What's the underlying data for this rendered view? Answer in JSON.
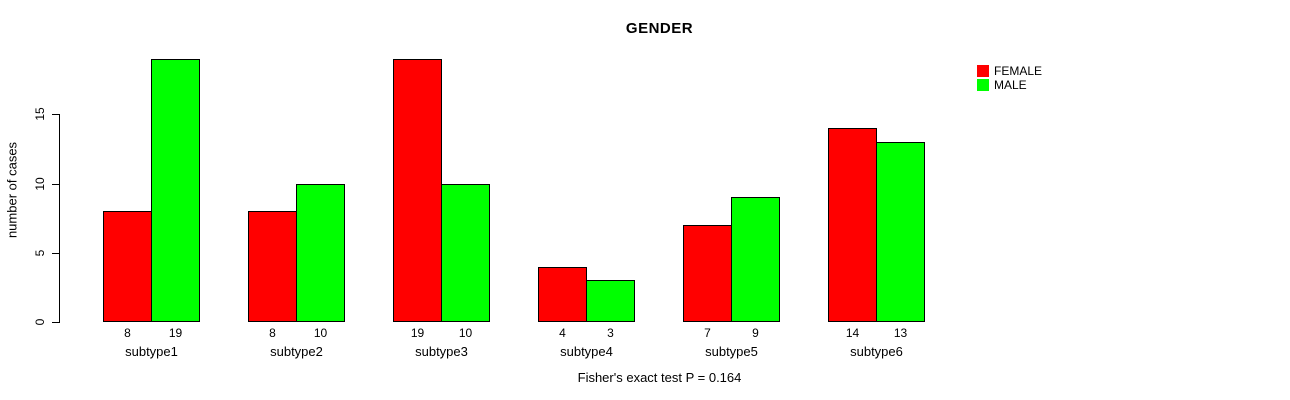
{
  "chart_data": {
    "type": "bar",
    "title": "GENDER",
    "ylabel": "number of cases",
    "xlabel": "",
    "caption": "Fisher's exact test P = 0.164",
    "categories": [
      "subtype1",
      "subtype2",
      "subtype3",
      "subtype4",
      "subtype5",
      "subtype6"
    ],
    "series": [
      {
        "name": "FEMALE",
        "color": "#ff0000",
        "values": [
          8,
          8,
          19,
          4,
          7,
          14
        ]
      },
      {
        "name": "MALE",
        "color": "#00ff00",
        "values": [
          19,
          10,
          10,
          3,
          9,
          13
        ]
      }
    ],
    "yticks": [
      0,
      5,
      10,
      15
    ],
    "ylim": [
      0,
      19
    ],
    "grid": false,
    "bar_value_labels_shown": true,
    "legend_position": "top-right",
    "legend_entries": [
      "FEMALE",
      "MALE"
    ]
  },
  "colors": {
    "background": "#ffffff",
    "axis": "#000000",
    "text": "#000000",
    "female": "#ff0000",
    "male": "#00ff00"
  }
}
